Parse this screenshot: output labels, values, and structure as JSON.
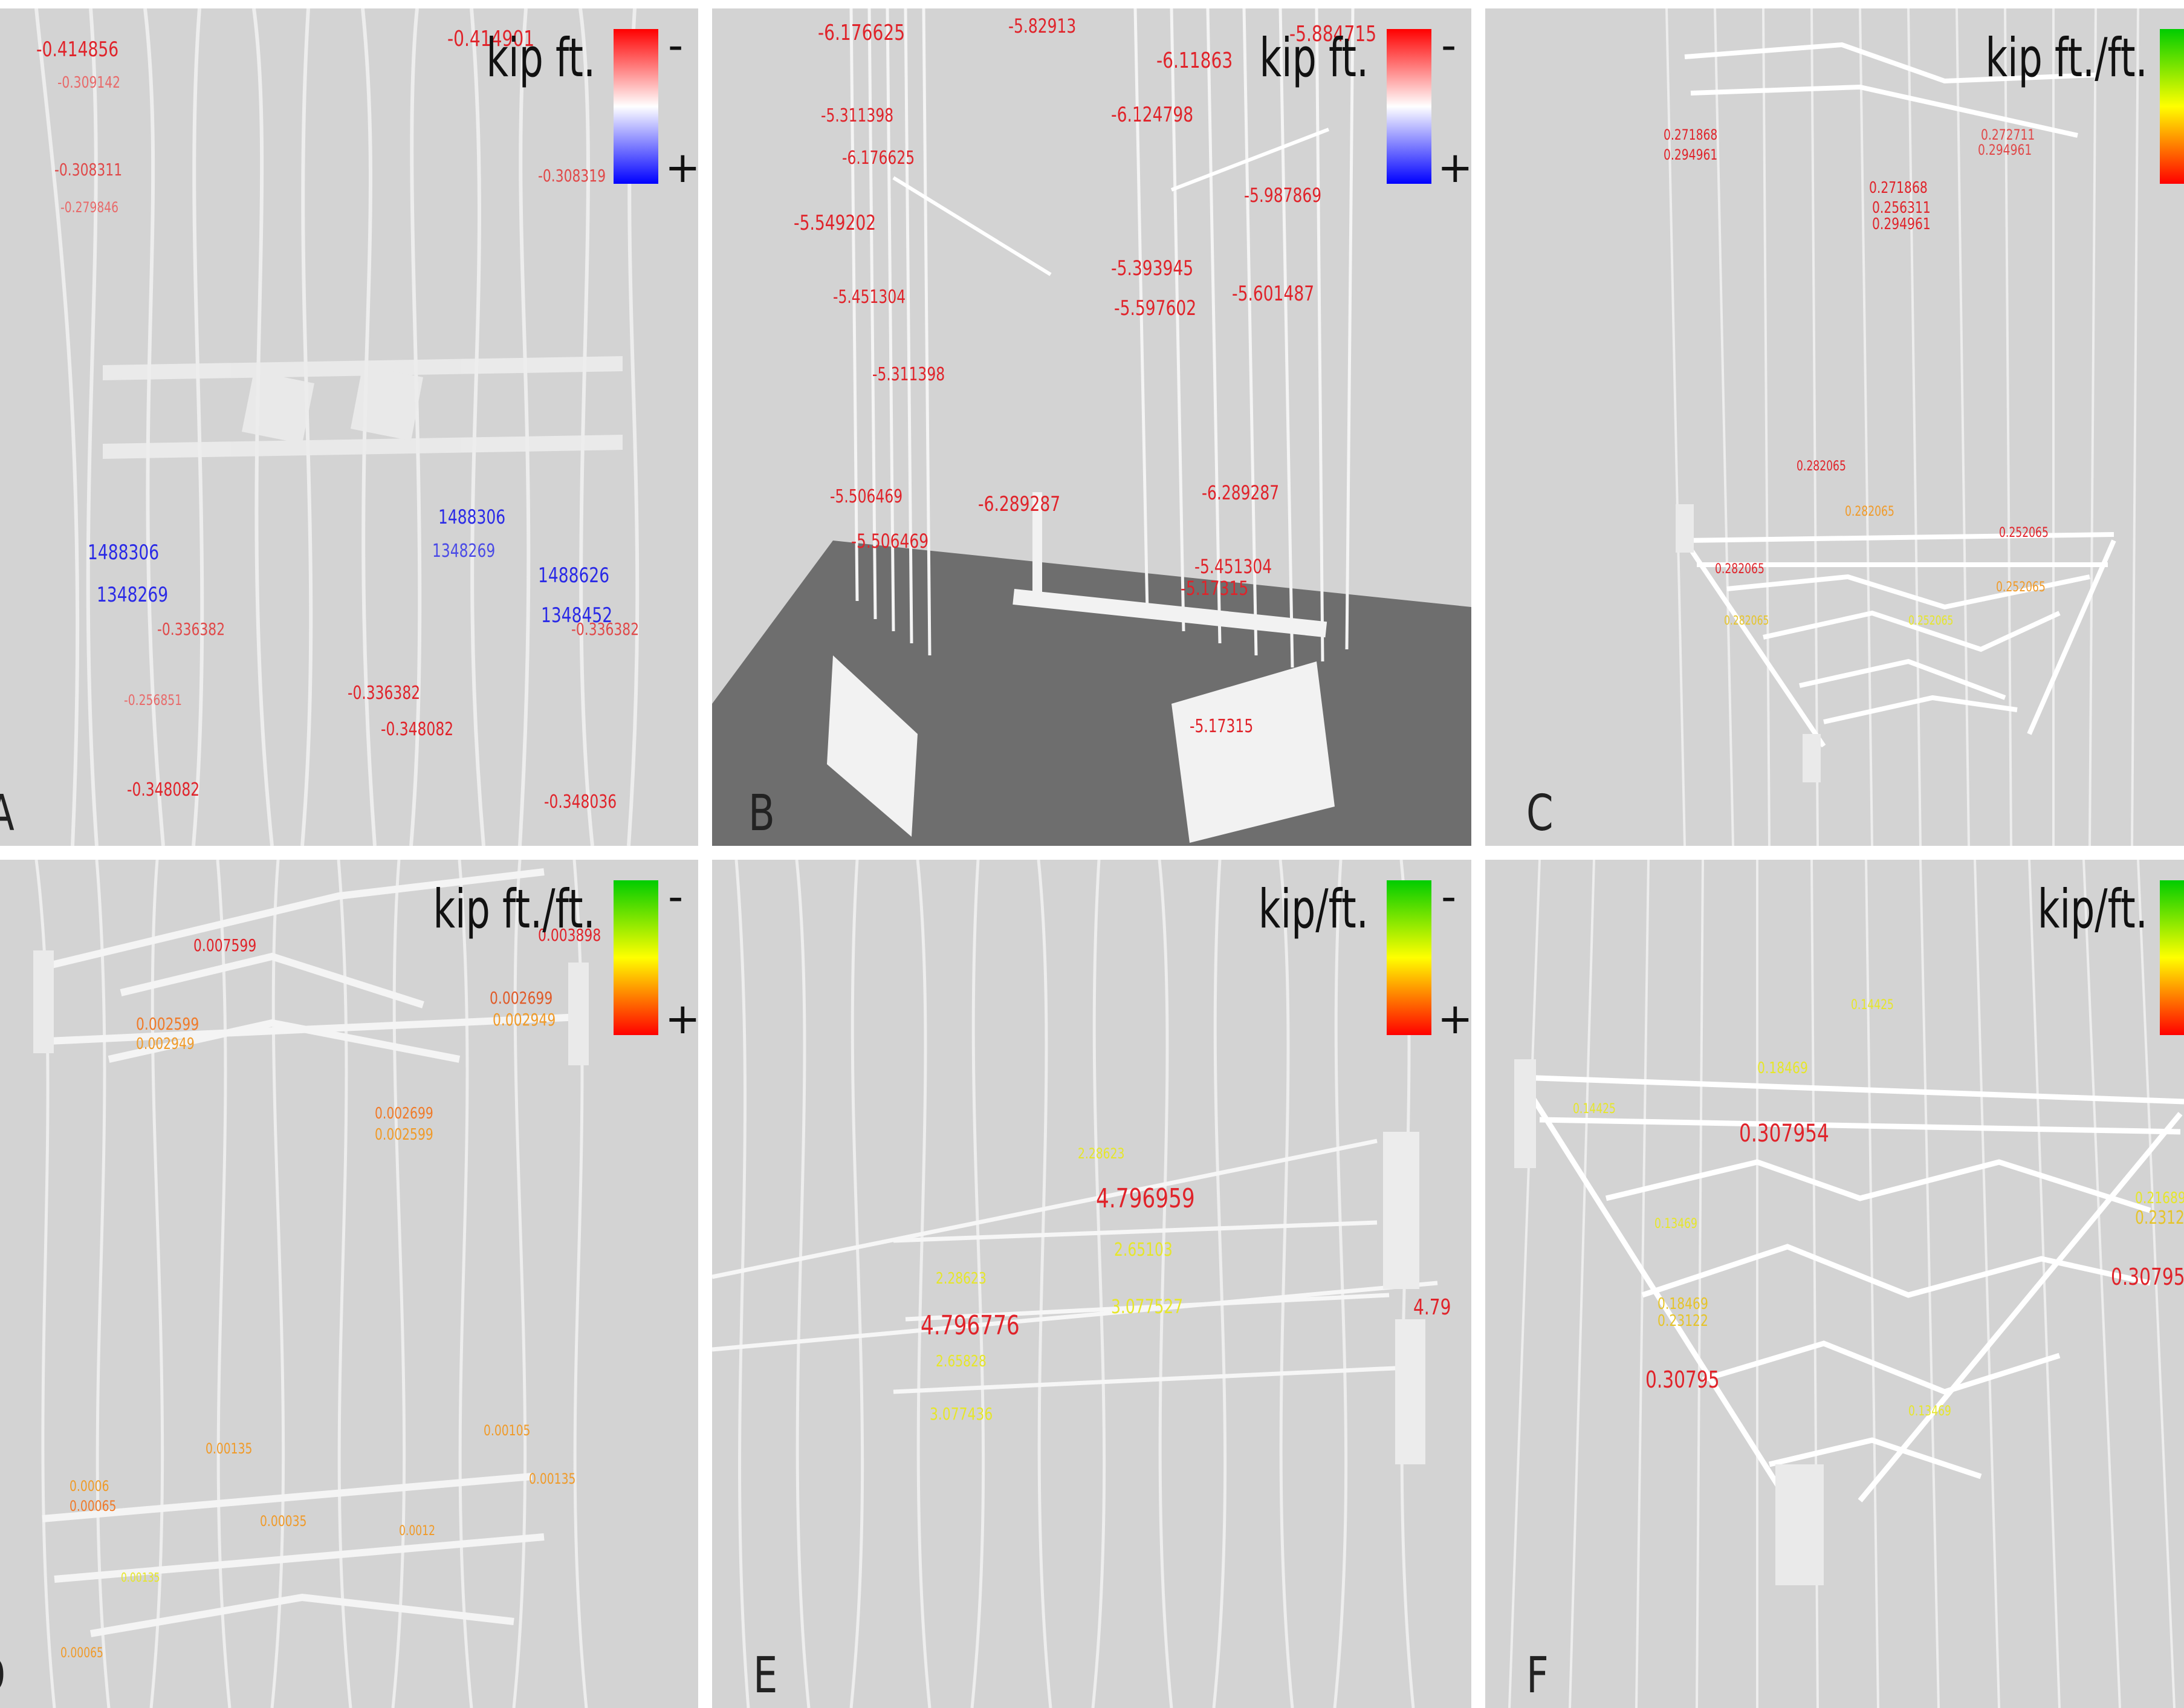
{
  "colors": {
    "background": "#d3d3d3",
    "ground": "#6e6e6e",
    "structure": "#f2f2f2",
    "red": "#e0232a",
    "blue": "#2a2ae6",
    "green": "#33b233",
    "yellow": "#e6e62a",
    "orange": "#f09a28",
    "gradient_red_blue": [
      "#ff0000",
      "#ffffff",
      "#0000ff"
    ],
    "gradient_green_red": [
      "#00cc00",
      "#ffff00",
      "#ff0000"
    ]
  },
  "panels": [
    {
      "letter": "A",
      "unit": "kip ft.",
      "sign_top": "-",
      "sign_bottom": "+",
      "gradient": "red-blue",
      "labels": [
        {
          "t": "-0.414856",
          "c": "red"
        },
        {
          "t": "-0.414901",
          "c": "red"
        },
        {
          "t": "-0.309142",
          "c": "red"
        },
        {
          "t": "-0.308311",
          "c": "red"
        },
        {
          "t": "-0.279846",
          "c": "red"
        },
        {
          "t": "-0.308319",
          "c": "red"
        },
        {
          "t": "1488306",
          "c": "blue"
        },
        {
          "t": "1348269",
          "c": "blue"
        },
        {
          "t": "1488626",
          "c": "blue"
        },
        {
          "t": "1348452",
          "c": "blue"
        },
        {
          "t": "-0.336382",
          "c": "red"
        },
        {
          "t": "-0.348082",
          "c": "red"
        },
        {
          "t": "-0.348036",
          "c": "red"
        },
        {
          "t": "-0.256851",
          "c": "red"
        }
      ]
    },
    {
      "letter": "B",
      "unit": "kip ft.",
      "sign_top": "-",
      "sign_bottom": "+",
      "gradient": "red-blue",
      "labels": [
        {
          "t": "-6.176625",
          "c": "red"
        },
        {
          "t": "-5.82913",
          "c": "red"
        },
        {
          "t": "-5.884715",
          "c": "red"
        },
        {
          "t": "-6.11863",
          "c": "red"
        },
        {
          "t": "-6.124798",
          "c": "red"
        },
        {
          "t": "-5.601487",
          "c": "red"
        },
        {
          "t": "-5.597602",
          "c": "red"
        },
        {
          "t": "-5.393945",
          "c": "red"
        },
        {
          "t": "-5.549202",
          "c": "red"
        },
        {
          "t": "-5.311398",
          "c": "red"
        },
        {
          "t": "-6.289287",
          "c": "red"
        },
        {
          "t": "-5.451304",
          "c": "red"
        },
        {
          "t": "-5.17315",
          "c": "red"
        },
        {
          "t": "-5.506469",
          "c": "red"
        },
        {
          "t": "-5.987869",
          "c": "red"
        }
      ]
    },
    {
      "letter": "C",
      "unit": "kip ft./ft.",
      "sign_top": "-",
      "sign_bottom": "+",
      "gradient": "green-red",
      "labels": [
        {
          "t": "0.271868",
          "c": "red"
        },
        {
          "t": "0.294961",
          "c": "red"
        },
        {
          "t": "0.256311",
          "c": "red"
        },
        {
          "t": "0.282065",
          "c": "red"
        },
        {
          "t": "0.252065",
          "c": "red"
        },
        {
          "t": "0.272711",
          "c": "red"
        },
        {
          "t": "0.282065",
          "c": "orange"
        },
        {
          "t": "0.252065",
          "c": "orange"
        }
      ]
    },
    {
      "letter": "D",
      "unit": "kip ft./ft.",
      "sign_top": "-",
      "sign_bottom": "+",
      "gradient": "green-red",
      "labels": [
        {
          "t": "0.007599",
          "c": "red"
        },
        {
          "t": "0.003898",
          "c": "red"
        },
        {
          "t": "0.002699",
          "c": "orange"
        },
        {
          "t": "0.002949",
          "c": "orange"
        },
        {
          "t": "0.002599",
          "c": "orange"
        },
        {
          "t": "0.00135",
          "c": "yellow"
        },
        {
          "t": "0.0006",
          "c": "orange"
        },
        {
          "t": "0.00065",
          "c": "orange"
        },
        {
          "t": "0.00035",
          "c": "orange"
        },
        {
          "t": "0.0012",
          "c": "orange"
        },
        {
          "t": "0.00105",
          "c": "orange"
        },
        {
          "t": "0.00135",
          "c": "orange"
        }
      ]
    },
    {
      "letter": "E",
      "unit": "kip/ft.",
      "sign_top": "-",
      "sign_bottom": "+",
      "gradient": "green-red",
      "labels": [
        {
          "t": "4.796959",
          "c": "red"
        },
        {
          "t": "4.796776",
          "c": "red"
        },
        {
          "t": "2.65103",
          "c": "yellow"
        },
        {
          "t": "3.077527",
          "c": "yellow"
        },
        {
          "t": "2.65828",
          "c": "yellow"
        },
        {
          "t": "3.077436",
          "c": "yellow"
        },
        {
          "t": "2.28623",
          "c": "yellow"
        },
        {
          "t": "4.79",
          "c": "red"
        }
      ]
    },
    {
      "letter": "F",
      "unit": "kip/ft.",
      "sign_top": "-",
      "sign_bottom": "+",
      "gradient": "green-red",
      "labels": [
        {
          "t": "0.307954",
          "c": "red"
        },
        {
          "t": "0.30795",
          "c": "red"
        },
        {
          "t": "0.30795",
          "c": "red"
        },
        {
          "t": "0.18469",
          "c": "yellow"
        },
        {
          "t": "0.21689",
          "c": "yellow"
        },
        {
          "t": "0.23122",
          "c": "yellow"
        },
        {
          "t": "0.14425",
          "c": "yellow"
        },
        {
          "t": "0.13469",
          "c": "yellow"
        }
      ]
    }
  ]
}
